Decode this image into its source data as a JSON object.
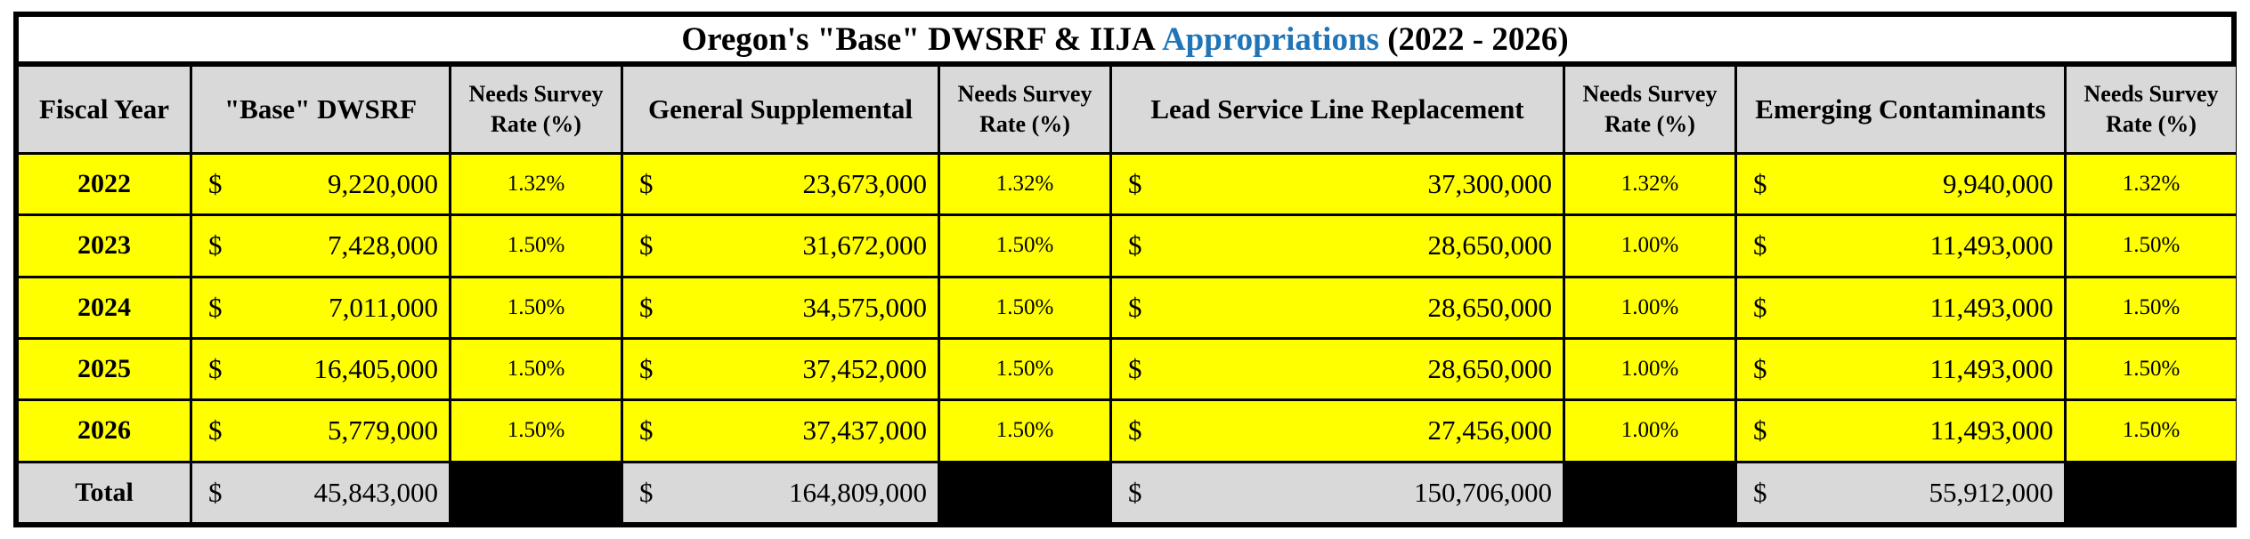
{
  "title": {
    "prefix": "Oregon's \"Base\" DWSRF & IIJA ",
    "accent": "Appropriations",
    "suffix": " (2022 - 2026)",
    "accent_color": "#1f75b8"
  },
  "colors": {
    "data_row_fill": "#ffff00",
    "header_fill": "#d9d9d9",
    "grid_line": "#000000"
  },
  "headers": {
    "fiscal_year": "Fiscal Year",
    "base_dwsrf": "\"Base\" DWSRF",
    "rate": "Needs Survey Rate (%)",
    "general_supplemental": "General Supplemental",
    "lead_service_line": "Lead Service Line Replacement",
    "emerging_contaminants": "Emerging Contaminants"
  },
  "currency_symbol": "$",
  "rows": [
    {
      "year": "2022",
      "base": "9,220,000",
      "base_rate": "1.32%",
      "general": "23,673,000",
      "general_rate": "1.32%",
      "lead": "37,300,000",
      "lead_rate": "1.32%",
      "emerging": "9,940,000",
      "emerging_rate": "1.32%"
    },
    {
      "year": "2023",
      "base": "7,428,000",
      "base_rate": "1.50%",
      "general": "31,672,000",
      "general_rate": "1.50%",
      "lead": "28,650,000",
      "lead_rate": "1.00%",
      "emerging": "11,493,000",
      "emerging_rate": "1.50%"
    },
    {
      "year": "2024",
      "base": "7,011,000",
      "base_rate": "1.50%",
      "general": "34,575,000",
      "general_rate": "1.50%",
      "lead": "28,650,000",
      "lead_rate": "1.00%",
      "emerging": "11,493,000",
      "emerging_rate": "1.50%"
    },
    {
      "year": "2025",
      "base": "16,405,000",
      "base_rate": "1.50%",
      "general": "37,452,000",
      "general_rate": "1.50%",
      "lead": "28,650,000",
      "lead_rate": "1.00%",
      "emerging": "11,493,000",
      "emerging_rate": "1.50%"
    },
    {
      "year": "2026",
      "base": "5,779,000",
      "base_rate": "1.50%",
      "general": "37,437,000",
      "general_rate": "1.50%",
      "lead": "27,456,000",
      "lead_rate": "1.00%",
      "emerging": "11,493,000",
      "emerging_rate": "1.50%"
    }
  ],
  "total": {
    "label": "Total",
    "base": "45,843,000",
    "general": "164,809,000",
    "lead": "150,706,000",
    "emerging": "55,912,000"
  }
}
